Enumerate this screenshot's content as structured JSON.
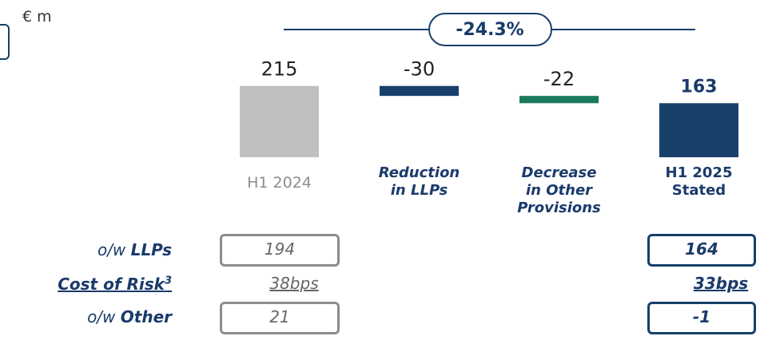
{
  "chart_data": {
    "type": "waterfall",
    "unit_label": "€ m",
    "annotation": "-24.3%",
    "categories": [
      "H1 2024",
      "Reduction in LLPs",
      "Decrease in Other Provisions",
      "H1 2025 Stated"
    ],
    "values": [
      215,
      -30,
      -22,
      163
    ],
    "measure": [
      "absolute",
      "relative",
      "relative",
      "total"
    ],
    "colors": [
      "#c0c0c0",
      "#17406a",
      "#1a7a5e",
      "#17406a"
    ],
    "ylim": [
      0,
      260
    ]
  },
  "table": {
    "rows": [
      {
        "prefix": "o/w ",
        "label": "LLPs",
        "h1_2024": "194",
        "h1_2025": "164"
      },
      {
        "label": "Cost of Risk",
        "footnote": "3",
        "h1_2024": "38bps",
        "h1_2025": "33bps"
      },
      {
        "prefix": "o/w ",
        "label": "Other",
        "h1_2024": "21",
        "h1_2025": "-1"
      }
    ]
  }
}
